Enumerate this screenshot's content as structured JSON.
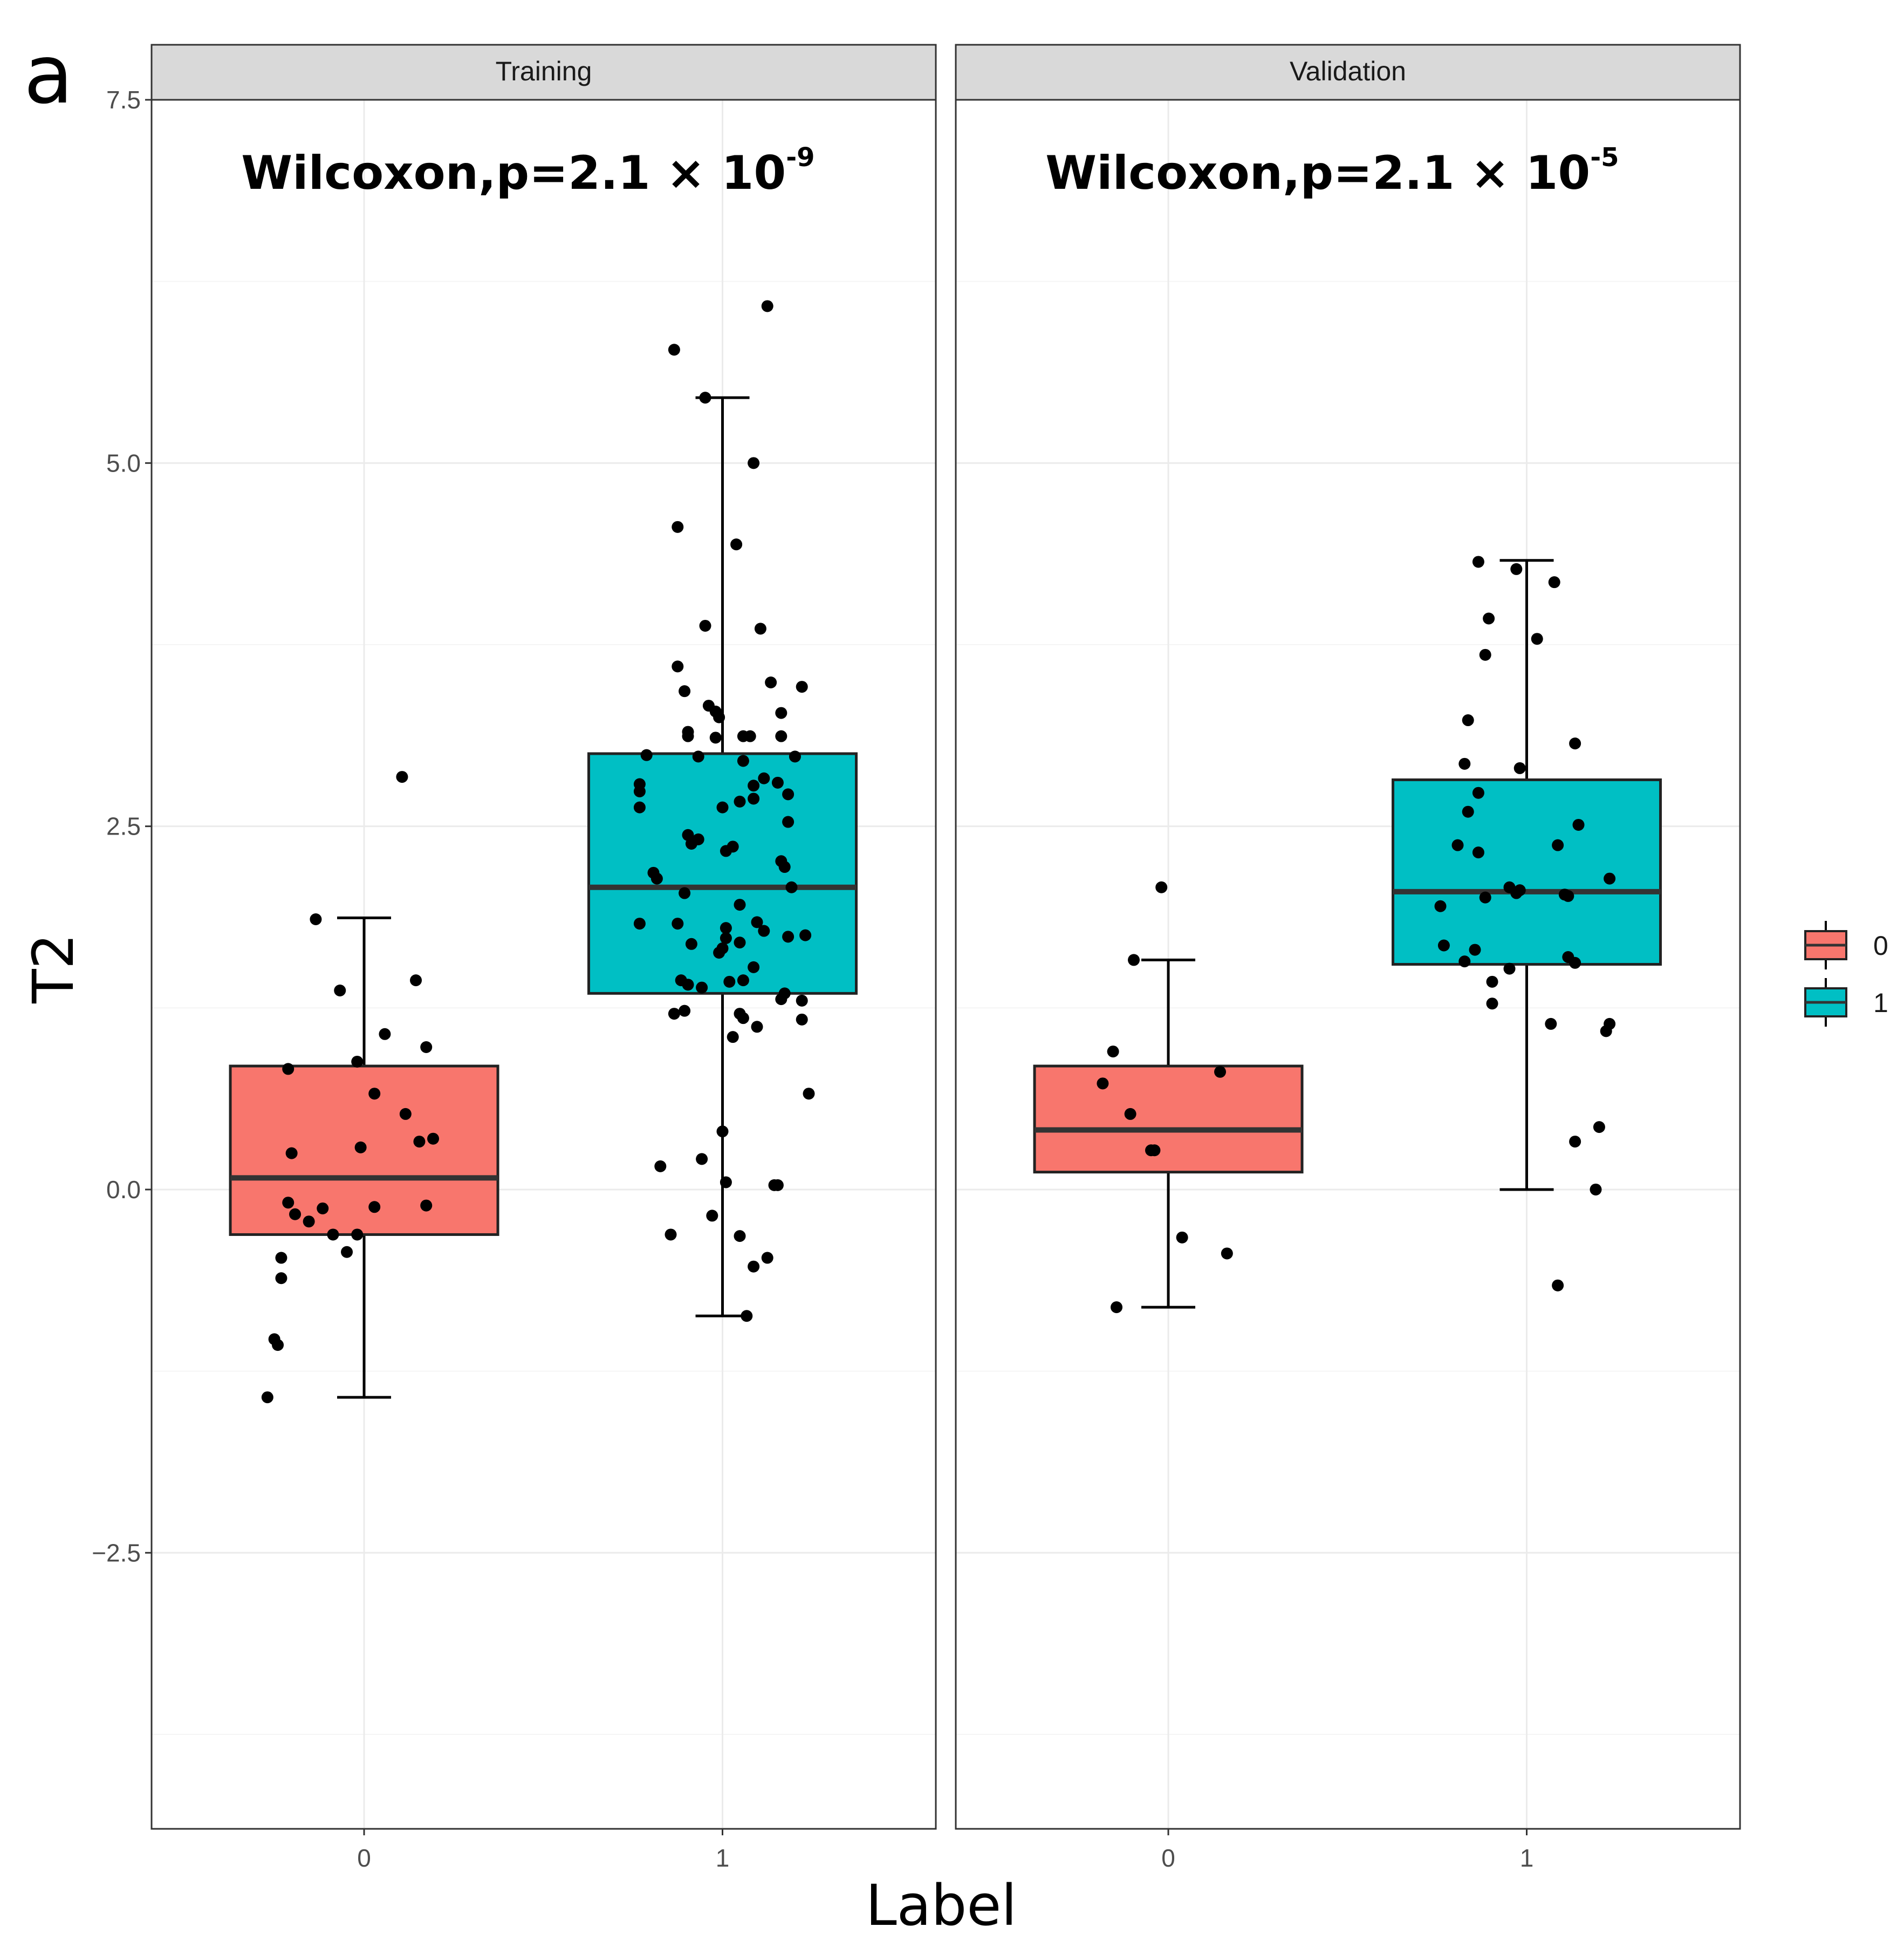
{
  "panel_letter": "a",
  "colors": {
    "group0": "#F8766D",
    "group1": "#00BFC4",
    "strip": "#d9d9d9",
    "point": "#000000"
  },
  "chart_data": {
    "type": "boxplot",
    "ylabel": "T2",
    "xlabel": "Label",
    "ylim": [
      -4.4,
      7.5
    ],
    "yticks": [
      7.5,
      5.0,
      2.5,
      0.0,
      -2.5
    ],
    "ytick_labels": [
      "7.5",
      "5.0",
      "2.5",
      "0.0",
      "−2.5"
    ],
    "categories": [
      "0",
      "1"
    ],
    "legend": {
      "position": "right",
      "entries": [
        "0",
        "1"
      ]
    },
    "facets": [
      {
        "name": "Training",
        "stat_prefix": "Wilcoxon,p=2.1 × 10",
        "stat_exp": "-9",
        "groups": [
          {
            "label": "0",
            "box": {
              "q1": -0.31,
              "median": 0.08,
              "q3": 0.85,
              "whisker_low": -1.43,
              "whisker_high": 1.87
            },
            "points": [
              [
                -0.28,
                -1.43
              ],
              [
                -0.26,
                -1.03
              ],
              [
                -0.25,
                -1.07
              ],
              [
                -0.24,
                -0.61
              ],
              [
                -0.24,
                -0.47
              ],
              [
                -0.22,
                -0.09
              ],
              [
                -0.21,
                0.25
              ],
              [
                -0.2,
                -0.17
              ],
              [
                -0.16,
                -0.22
              ],
              [
                -0.12,
                -0.13
              ],
              [
                -0.09,
                -0.31
              ],
              [
                -0.05,
                -0.43
              ],
              [
                -0.02,
                -0.31
              ],
              [
                -0.02,
                0.88
              ],
              [
                -0.14,
                1.86
              ],
              [
                -0.07,
                1.37
              ],
              [
                -0.22,
                0.83
              ],
              [
                0.03,
                0.66
              ],
              [
                0.06,
                1.07
              ],
              [
                0.03,
                -0.12
              ],
              [
                -0.01,
                0.29
              ],
              [
                0.12,
                0.52
              ],
              [
                0.11,
                2.84
              ],
              [
                0.15,
                1.44
              ],
              [
                0.16,
                0.33
              ],
              [
                0.18,
                0.98
              ],
              [
                0.2,
                0.35
              ],
              [
                0.18,
                -0.11
              ]
            ]
          },
          {
            "label": "1",
            "box": {
              "q1": 1.35,
              "median": 2.08,
              "q3": 3.0,
              "whisker_low": -0.87,
              "whisker_high": 5.45
            },
            "points": [
              [
                0.13,
                6.08
              ],
              [
                -0.14,
                5.78
              ],
              [
                -0.05,
                5.45
              ],
              [
                0.09,
                5.0
              ],
              [
                -0.13,
                4.56
              ],
              [
                0.04,
                4.44
              ],
              [
                -0.05,
                3.88
              ],
              [
                0.11,
                3.86
              ],
              [
                -0.13,
                3.6
              ],
              [
                0.14,
                3.49
              ],
              [
                0.23,
                3.46
              ],
              [
                -0.11,
                3.43
              ],
              [
                -0.04,
                3.33
              ],
              [
                -0.02,
                3.29
              ],
              [
                -0.01,
                3.25
              ],
              [
                0.17,
                3.28
              ],
              [
                -0.1,
                3.15
              ],
              [
                -0.1,
                3.12
              ],
              [
                -0.02,
                3.11
              ],
              [
                0.06,
                3.12
              ],
              [
                0.08,
                3.12
              ],
              [
                0.17,
                3.12
              ],
              [
                -0.22,
                2.99
              ],
              [
                -0.07,
                2.98
              ],
              [
                0.06,
                2.95
              ],
              [
                0.21,
                2.98
              ],
              [
                -0.24,
                2.79
              ],
              [
                -0.24,
                2.74
              ],
              [
                0.12,
                2.83
              ],
              [
                0.16,
                2.8
              ],
              [
                0.09,
                2.78
              ],
              [
                0.19,
                2.72
              ],
              [
                -0.24,
                2.63
              ],
              [
                0.0,
                2.63
              ],
              [
                0.05,
                2.67
              ],
              [
                0.09,
                2.69
              ],
              [
                0.19,
                2.53
              ],
              [
                -0.1,
                2.44
              ],
              [
                -0.09,
                2.38
              ],
              [
                -0.07,
                2.41
              ],
              [
                0.03,
                2.36
              ],
              [
                0.01,
                2.33
              ],
              [
                0.17,
                2.26
              ],
              [
                0.18,
                2.22
              ],
              [
                -0.2,
                2.18
              ],
              [
                -0.19,
                2.14
              ],
              [
                -0.11,
                2.04
              ],
              [
                0.2,
                2.08
              ],
              [
                0.05,
                1.96
              ],
              [
                -0.24,
                1.83
              ],
              [
                -0.13,
                1.83
              ],
              [
                0.1,
                1.84
              ],
              [
                0.12,
                1.78
              ],
              [
                0.19,
                1.74
              ],
              [
                0.24,
                1.75
              ],
              [
                0.01,
                1.8
              ],
              [
                0.01,
                1.73
              ],
              [
                0.05,
                1.7
              ],
              [
                -0.09,
                1.69
              ],
              [
                0.0,
                1.66
              ],
              [
                -0.01,
                1.63
              ],
              [
                -0.12,
                1.44
              ],
              [
                -0.1,
                1.41
              ],
              [
                -0.06,
                1.39
              ],
              [
                0.02,
                1.43
              ],
              [
                0.06,
                1.44
              ],
              [
                0.09,
                1.53
              ],
              [
                0.17,
                1.31
              ],
              [
                0.18,
                1.35
              ],
              [
                0.23,
                1.3
              ],
              [
                -0.14,
                1.21
              ],
              [
                -0.11,
                1.23
              ],
              [
                0.05,
                1.21
              ],
              [
                0.06,
                1.18
              ],
              [
                0.1,
                1.12
              ],
              [
                0.03,
                1.05
              ],
              [
                0.23,
                1.17
              ],
              [
                0.25,
                0.66
              ],
              [
                0.0,
                0.4
              ],
              [
                -0.18,
                0.16
              ],
              [
                -0.06,
                0.21
              ],
              [
                0.01,
                0.05
              ],
              [
                0.15,
                0.03
              ],
              [
                0.16,
                0.03
              ],
              [
                -0.15,
                -0.31
              ],
              [
                -0.03,
                -0.18
              ],
              [
                0.05,
                -0.32
              ],
              [
                0.09,
                -0.53
              ],
              [
                0.13,
                -0.47
              ],
              [
                0.07,
                -0.87
              ]
            ]
          }
        ]
      },
      {
        "name": "Validation",
        "stat_prefix": "Wilcoxon,p=2.1 × 10",
        "stat_exp": "-5",
        "groups": [
          {
            "label": "0",
            "box": {
              "q1": 0.12,
              "median": 0.41,
              "q3": 0.85,
              "whisker_low": -0.81,
              "whisker_high": 1.58
            },
            "points": [
              [
                -0.02,
                2.08
              ],
              [
                -0.1,
                1.58
              ],
              [
                -0.16,
                0.95
              ],
              [
                -0.19,
                0.73
              ],
              [
                -0.11,
                0.52
              ],
              [
                -0.05,
                0.27
              ],
              [
                -0.04,
                0.27
              ],
              [
                0.15,
                0.81
              ],
              [
                0.04,
                -0.33
              ],
              [
                0.17,
                -0.44
              ],
              [
                -0.15,
                -0.81
              ]
            ]
          },
          {
            "label": "1",
            "box": {
              "q1": 1.55,
              "median": 2.05,
              "q3": 2.82,
              "whisker_low": 0.0,
              "whisker_high": 4.33
            },
            "points": [
              [
                -0.14,
                4.32
              ],
              [
                -0.03,
                4.27
              ],
              [
                0.08,
                4.18
              ],
              [
                -0.11,
                3.93
              ],
              [
                -0.12,
                3.68
              ],
              [
                0.03,
                3.79
              ],
              [
                -0.17,
                3.23
              ],
              [
                0.14,
                3.07
              ],
              [
                -0.18,
                2.93
              ],
              [
                -0.02,
                2.9
              ],
              [
                -0.14,
                2.73
              ],
              [
                -0.17,
                2.6
              ],
              [
                0.15,
                2.51
              ],
              [
                -0.2,
                2.37
              ],
              [
                -0.14,
                2.32
              ],
              [
                0.09,
                2.37
              ],
              [
                -0.05,
                2.08
              ],
              [
                -0.02,
                2.06
              ],
              [
                -0.12,
                2.01
              ],
              [
                -0.03,
                2.04
              ],
              [
                0.11,
                2.03
              ],
              [
                0.12,
                2.02
              ],
              [
                -0.25,
                1.95
              ],
              [
                0.24,
                2.14
              ],
              [
                -0.24,
                1.68
              ],
              [
                -0.15,
                1.65
              ],
              [
                -0.18,
                1.57
              ],
              [
                -0.05,
                1.52
              ],
              [
                0.12,
                1.6
              ],
              [
                0.14,
                1.56
              ],
              [
                -0.1,
                1.43
              ],
              [
                -0.1,
                1.28
              ],
              [
                0.07,
                1.14
              ],
              [
                0.24,
                1.14
              ],
              [
                0.23,
                1.09
              ],
              [
                0.21,
                0.43
              ],
              [
                0.14,
                0.33
              ],
              [
                0.2,
                0.0
              ],
              [
                0.09,
                -0.66
              ]
            ]
          }
        ]
      }
    ]
  }
}
